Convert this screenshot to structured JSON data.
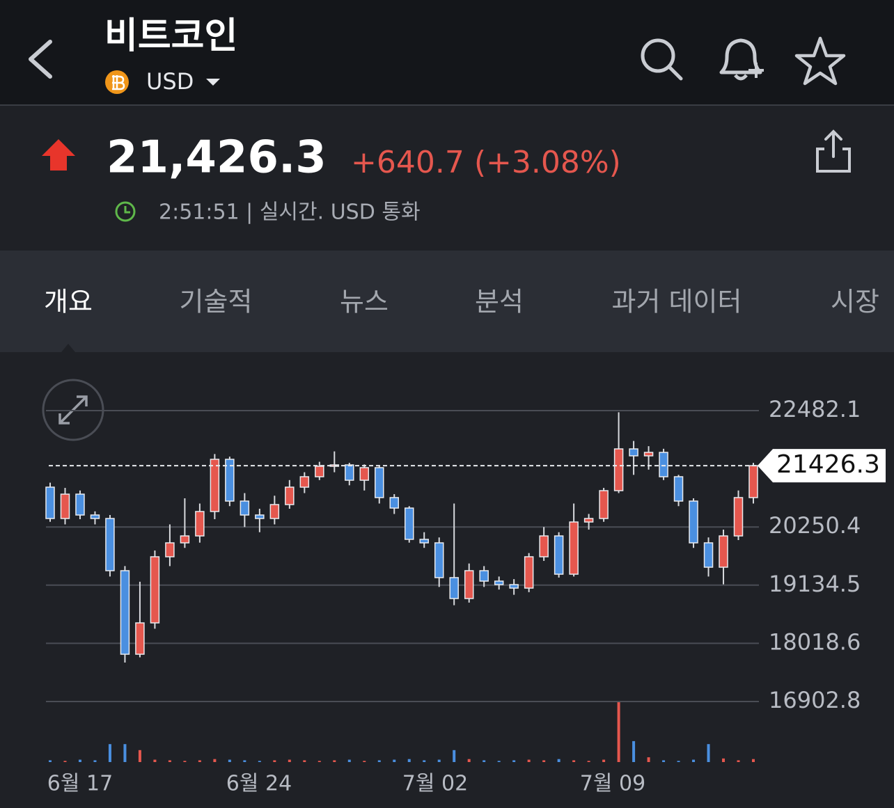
{
  "header": {
    "title": "비트코인",
    "currency": "USD"
  },
  "quote": {
    "price": "21,426.3",
    "change": "+640.7 (+3.08%)",
    "status": "2:51:51 | 실시간. USD 통화"
  },
  "tabs": [
    "개요",
    "기술적",
    "뉴스",
    "분석",
    "과거 데이터",
    "시장"
  ],
  "chart_data": {
    "type": "candlestick",
    "open": [
      21014,
      20413,
      20880,
      20480,
      20413,
      19412,
      17810,
      18411,
      19679,
      19946,
      20079,
      20547,
      21548,
      20747,
      20480,
      20413,
      20680,
      21014,
      21214,
      21414,
      21441,
      21147,
      21388,
      20814,
      20613,
      20013,
      19946,
      19279,
      18878,
      19412,
      19212,
      19145,
      19078,
      19679,
      20079,
      19345,
      20346,
      20413,
      20947,
      21748,
      21615,
      21681,
      21214,
      20747,
      19946,
      19479,
      20079,
      20814
    ],
    "high": [
      21100,
      21000,
      20950,
      20550,
      20480,
      19500,
      19200,
      19800,
      20300,
      20800,
      20700,
      21650,
      21600,
      20900,
      20600,
      20850,
      21150,
      21300,
      21500,
      21700,
      21480,
      21450,
      21420,
      20880,
      20650,
      20150,
      20050,
      20700,
      19550,
      19500,
      19300,
      19250,
      19750,
      20250,
      20150,
      20700,
      20500,
      21000,
      22450,
      21900,
      21800,
      21750,
      21250,
      20800,
      20050,
      20200,
      20950,
      21480
    ],
    "low": [
      20350,
      20300,
      20400,
      20300,
      19300,
      17650,
      17750,
      18300,
      19500,
      19850,
      19950,
      20400,
      20650,
      20250,
      20150,
      20300,
      20600,
      20900,
      21150,
      21300,
      21050,
      20950,
      20700,
      20500,
      19950,
      19850,
      19100,
      18750,
      18800,
      19100,
      19050,
      18950,
      19000,
      19600,
      19280,
      19300,
      20200,
      20350,
      20900,
      21250,
      21350,
      21150,
      20650,
      19850,
      19300,
      19150,
      20000,
      20700
    ],
    "close": [
      20413,
      20880,
      20480,
      20413,
      19412,
      17810,
      18411,
      19679,
      19946,
      20079,
      20547,
      21548,
      20747,
      20480,
      20413,
      20680,
      21014,
      21214,
      21414,
      21441,
      21147,
      21388,
      20814,
      20613,
      20013,
      19946,
      19279,
      18878,
      19412,
      19212,
      19145,
      19078,
      19679,
      20079,
      19345,
      20346,
      20413,
      20947,
      21748,
      21615,
      21681,
      21214,
      20747,
      19946,
      19479,
      20079,
      20814,
      21426.3
    ],
    "volume": [
      3,
      2,
      4,
      3,
      30,
      30,
      20,
      4,
      3,
      2,
      3,
      5,
      4,
      3,
      2,
      3,
      4,
      3,
      2,
      3,
      4,
      2,
      3,
      4,
      5,
      3,
      4,
      20,
      5,
      3,
      2,
      3,
      4,
      3,
      5,
      3,
      2,
      4,
      100,
      35,
      8,
      3,
      2,
      4,
      30,
      6,
      3,
      5
    ],
    "up_color": "#e5574e",
    "down_color": "#4a8fe0",
    "ylim": [
      16902.8,
      22482.1
    ],
    "yticks": [
      22482.1,
      20250.4,
      19134.5,
      18018.6,
      16902.8
    ],
    "last_price": 21426.3,
    "x_labels": [
      "6월 17",
      "6월 24",
      "7월 02",
      "7월 09"
    ],
    "grid": true
  }
}
